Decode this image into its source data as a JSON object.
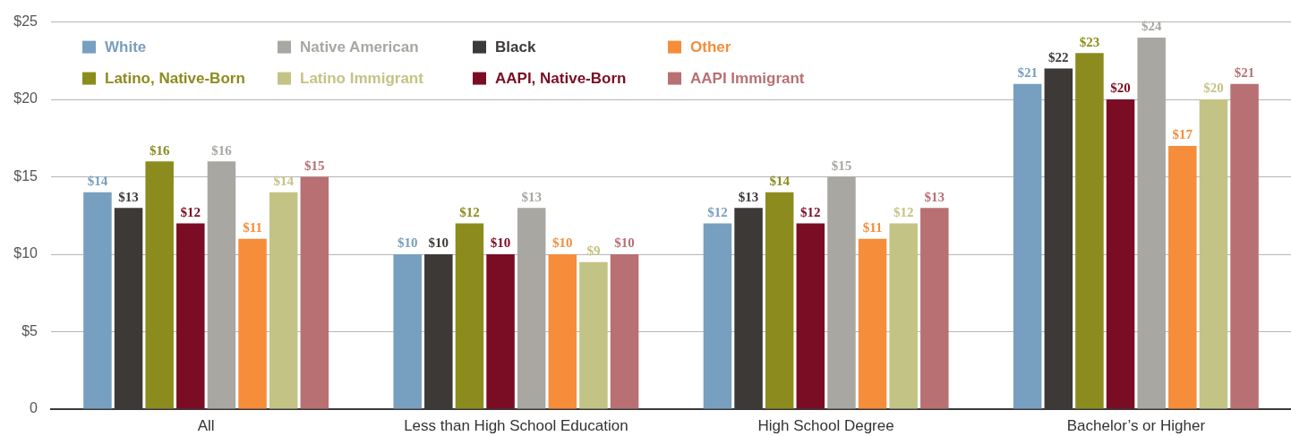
{
  "chart_data": {
    "type": "bar",
    "categories": [
      "All",
      "Less than High School Education",
      "High School Degree",
      "Bachelor’s or Higher"
    ],
    "series": [
      {
        "name": "White",
        "color": "#779fc0",
        "values": [
          14,
          10,
          12,
          21
        ],
        "value_labels": [
          "$14",
          "$10",
          "$12",
          "$21"
        ]
      },
      {
        "name": "Black",
        "color": "#3d3937",
        "values": [
          13,
          10,
          13,
          22
        ],
        "value_labels": [
          "$13",
          "$10",
          "$13",
          "$22"
        ]
      },
      {
        "name": "Latino, Native-Born",
        "color": "#8c8c1e",
        "values": [
          16,
          12,
          14,
          23
        ],
        "value_labels": [
          "$16",
          "$12",
          "$14",
          "$23"
        ]
      },
      {
        "name": "AAPI, Native-Born",
        "color": "#7a0d24",
        "values": [
          12,
          10,
          12,
          20
        ],
        "value_labels": [
          "$12",
          "$10",
          "$12",
          "$20"
        ]
      },
      {
        "name": "Native American",
        "color": "#a8a7a1",
        "values": [
          16,
          13,
          15,
          24
        ],
        "value_labels": [
          "$16",
          "$13",
          "$15",
          "$24"
        ]
      },
      {
        "name": "Other",
        "color": "#f58d3b",
        "values": [
          11,
          10,
          11,
          17
        ],
        "value_labels": [
          "$11",
          "$10",
          "$11",
          "$17"
        ]
      },
      {
        "name": "Latino Immigrant",
        "color": "#c3c385",
        "values": [
          14,
          9.5,
          12,
          20
        ],
        "value_labels": [
          "$14",
          "$9",
          "$12",
          "$20"
        ]
      },
      {
        "name": "AAPI Immigrant",
        "color": "#b87073",
        "values": [
          15,
          10,
          13,
          21
        ],
        "value_labels": [
          "$15",
          "$10",
          "$13",
          "$21"
        ]
      }
    ],
    "ylim": [
      0,
      25
    ],
    "yticks": [
      0,
      {
        "value": 5,
        "label": "$5"
      },
      {
        "value": 10,
        "label": "$10"
      },
      {
        "value": 15,
        "label": "$15"
      },
      {
        "value": 20,
        "label": "$20"
      },
      {
        "value": 25,
        "label": "$25"
      }
    ],
    "grid": "y",
    "legend": "top left"
  }
}
